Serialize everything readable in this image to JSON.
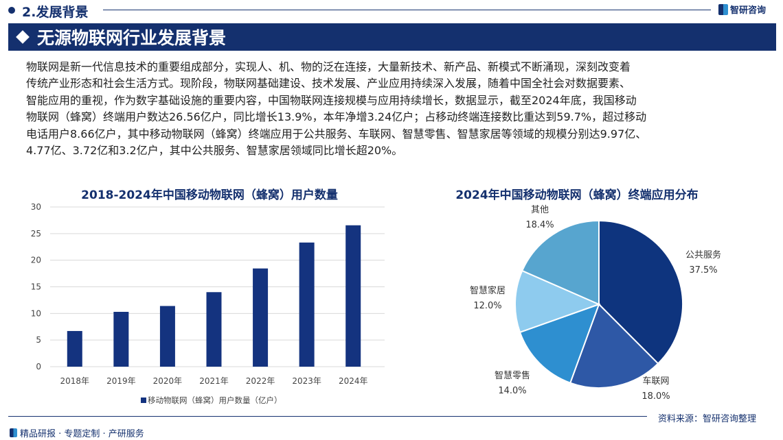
{
  "header": {
    "section": "2.发展背景",
    "brand": "智研咨询",
    "banner_title": "无源物联网行业发展背景"
  },
  "paragraph": [
    "物联网是新一代信息技术的重要组成部分，实现人、机、物的泛在连接，大量新技术、新产品、新模式不断涌现，深刻改变着",
    "传统产业形态和社会生活方式。现阶段，物联网基础建设、技术发展、产业应用持续深入发展，随着中国全社会对数据要素、",
    "智能应用的重视，作为数字基础设施的重要内容，中国物联网连接规模与应用持续增长，数据显示，截至2024年底，我国移动",
    "物联网（蜂窝）终端用户数达26.56亿户，同比增长13.9%，本年净增3.24亿户；占移动终端连接数比重达到59.7%，超过移动",
    "电话用户8.66亿户，其中移动物联网（蜂窝）终端应用于公共服务、车联网、智慧零售、智慧家居等领域的规模分别达9.97亿、",
    "4.77亿、3.72亿和3.2亿户，其中公共服务、智慧家居领域同比增长超20%。"
  ],
  "chart_data": [
    {
      "type": "bar",
      "title": "2018-2024年中国移动物联网（蜂窝）用户数量",
      "categories": [
        "2018年",
        "2019年",
        "2020年",
        "2021年",
        "2022年",
        "2023年",
        "2024年"
      ],
      "series": [
        {
          "name": "移动物联网（蜂窝）用户数量（亿户）",
          "values": [
            6.7,
            10.3,
            11.4,
            14.0,
            18.45,
            23.32,
            26.56
          ],
          "color": "#14337f"
        }
      ],
      "yticks": [
        "0",
        "5",
        "10",
        "15",
        "20",
        "25",
        "30"
      ],
      "ylim": [
        0,
        30
      ],
      "grid": true,
      "legend": "bottom"
    },
    {
      "type": "pie",
      "title": "2024年中国移动物联网（蜂窝）终端应用分布",
      "slices": [
        {
          "label": "公共服务",
          "value": 37.5,
          "text": "37.5%",
          "color": "#0e347e"
        },
        {
          "label": "车联网",
          "value": 18.0,
          "text": "18.0%",
          "color": "#2e58a6"
        },
        {
          "label": "智慧零售",
          "value": 14.0,
          "text": "14.0%",
          "color": "#2e8fd0"
        },
        {
          "label": "智慧家居",
          "value": 12.0,
          "text": "12.0%",
          "color": "#8ecbee"
        },
        {
          "label": "其他",
          "value": 18.4,
          "text": "18.4%",
          "color": "#57a5cf"
        }
      ]
    }
  ],
  "footer": {
    "source": "资料来源：智研咨询整理",
    "slogan": "精品研报 · 专题定制 · 产研服务"
  }
}
